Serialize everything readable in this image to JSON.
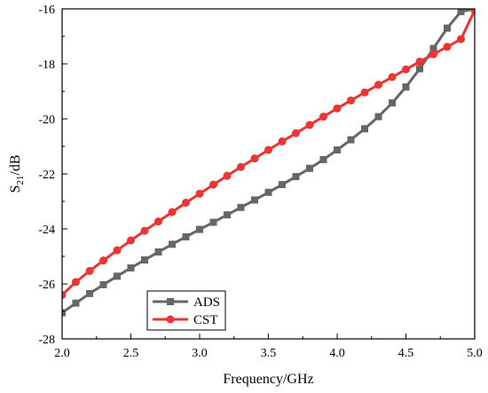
{
  "chart_data": {
    "type": "line",
    "title": "",
    "xlabel": "Frequency/GHz",
    "ylabel": {
      "main": "S",
      "sub": "21",
      "unit": "/dB"
    },
    "xlim": [
      2.0,
      5.0
    ],
    "ylim": [
      -28,
      -16
    ],
    "xticks": [
      2.0,
      2.5,
      3.0,
      3.5,
      4.0,
      4.5,
      5.0
    ],
    "xtick_labels": [
      "2.0",
      "2.5",
      "3.0",
      "3.5",
      "4.0",
      "4.5",
      "5.0"
    ],
    "yticks": [
      -28,
      -26,
      -24,
      -22,
      -20,
      -18,
      -16
    ],
    "ytick_labels": [
      "-28",
      "-26",
      "-24",
      "-22",
      "-20",
      "-18",
      "-16"
    ],
    "grid": false,
    "legend_position": "bottom-left",
    "x": [
      2.0,
      2.1,
      2.2,
      2.3,
      2.4,
      2.5,
      2.6,
      2.7,
      2.8,
      2.9,
      3.0,
      3.1,
      3.2,
      3.3,
      3.4,
      3.5,
      3.6,
      3.7,
      3.8,
      3.9,
      4.0,
      4.1,
      4.2,
      4.3,
      4.4,
      4.5,
      4.6,
      4.7,
      4.8,
      4.9,
      5.0
    ],
    "series": [
      {
        "name": "ADS",
        "color": "#666666",
        "marker": "square",
        "values": [
          -27.05,
          -26.7,
          -26.35,
          -26.03,
          -25.72,
          -25.42,
          -25.13,
          -24.84,
          -24.56,
          -24.29,
          -24.02,
          -23.76,
          -23.49,
          -23.22,
          -22.95,
          -22.67,
          -22.39,
          -22.1,
          -21.8,
          -21.48,
          -21.13,
          -20.76,
          -20.36,
          -19.92,
          -19.42,
          -18.84,
          -18.18,
          -17.44,
          -16.7,
          -16.1,
          -16.0
        ]
      },
      {
        "name": "CST",
        "color": "#ee3333",
        "marker": "circle",
        "values": [
          -26.4,
          -25.93,
          -25.53,
          -25.15,
          -24.78,
          -24.42,
          -24.07,
          -23.73,
          -23.39,
          -23.05,
          -22.72,
          -22.39,
          -22.07,
          -21.75,
          -21.44,
          -21.13,
          -20.82,
          -20.52,
          -20.22,
          -19.92,
          -19.62,
          -19.33,
          -19.04,
          -18.76,
          -18.48,
          -18.2,
          -17.92,
          -17.65,
          -17.38,
          -17.1,
          -16.05
        ]
      }
    ]
  }
}
